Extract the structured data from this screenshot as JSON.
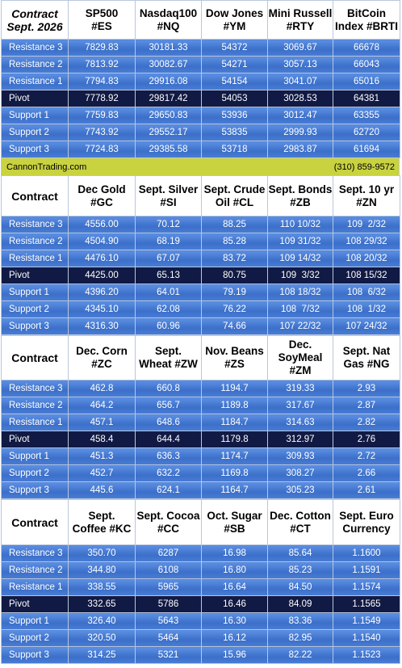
{
  "blocks": [
    {
      "header": [
        "Contract\nSept. 2026",
        "SP500\n#ES",
        "Nasdaq100\n#NQ",
        "Dow Jones\n#YM",
        "Mini Russell\n#RTY",
        "BitCoin\nIndex #BRTI"
      ],
      "rows": [
        [
          "Resistance 3",
          "7829.83",
          "30181.33",
          "54372",
          "3069.67",
          "66678"
        ],
        [
          "Resistance 2",
          "7813.92",
          "30082.67",
          "54271",
          "3057.13",
          "66043"
        ],
        [
          "Resistance 1",
          "7794.83",
          "29916.08",
          "54154",
          "3041.07",
          "65016"
        ],
        [
          "Pivot",
          "7778.92",
          "29817.42",
          "54053",
          "3028.53",
          "64381"
        ],
        [
          "Support 1",
          "7759.83",
          "29650.83",
          "53936",
          "3012.47",
          "63355"
        ],
        [
          "Support 2",
          "7743.92",
          "29552.17",
          "53835",
          "2999.93",
          "62720"
        ],
        [
          "Support 3",
          "7724.83",
          "29385.58",
          "53718",
          "2983.87",
          "61694"
        ]
      ]
    },
    {
      "header": [
        "Contract",
        "Dec Gold\n#GC",
        "Sept. Silver\n#SI",
        "Sept. Crude\nOil #CL",
        "Sept. Bonds\n#ZB",
        "Sept. 10 yr\n#ZN"
      ],
      "rows": [
        [
          "Resistance 3",
          "4556.00",
          "70.12",
          "88.25",
          "110 10/32",
          "109  2/32"
        ],
        [
          "Resistance 2",
          "4504.90",
          "68.19",
          "85.28",
          "109 31/32",
          "108 29/32"
        ],
        [
          "Resistance 1",
          "4476.10",
          "67.07",
          "83.72",
          "109 14/32",
          "108 20/32"
        ],
        [
          "Pivot",
          "4425.00",
          "65.13",
          "80.75",
          "109  3/32",
          "108 15/32"
        ],
        [
          "Support 1",
          "4396.20",
          "64.01",
          "79.19",
          "108 18/32",
          "108  6/32"
        ],
        [
          "Support 2",
          "4345.10",
          "62.08",
          "76.22",
          "108  7/32",
          "108  1/32"
        ],
        [
          "Support 3",
          "4316.30",
          "60.96",
          "74.66",
          "107 22/32",
          "107 24/32"
        ]
      ]
    },
    {
      "header": [
        "Contract",
        "Dec. Corn\n#ZC",
        "Sept.\nWheat #ZW",
        "Nov. Beans\n#ZS",
        "Dec.\nSoyMeal\n#ZM",
        "Sept. Nat\nGas #NG"
      ],
      "rows": [
        [
          "Resistance 3",
          "462.8",
          "660.8",
          "1194.7",
          "319.33",
          "2.93"
        ],
        [
          "Resistance 2",
          "464.2",
          "656.7",
          "1189.8",
          "317.67",
          "2.87"
        ],
        [
          "Resistance 1",
          "457.1",
          "648.6",
          "1184.7",
          "314.63",
          "2.82"
        ],
        [
          "Pivot",
          "458.4",
          "644.4",
          "1179.8",
          "312.97",
          "2.76"
        ],
        [
          "Support 1",
          "451.3",
          "636.3",
          "1174.7",
          "309.93",
          "2.72"
        ],
        [
          "Support 2",
          "452.7",
          "632.2",
          "1169.8",
          "308.27",
          "2.66"
        ],
        [
          "Support 3",
          "445.6",
          "624.1",
          "1164.7",
          "305.23",
          "2.61"
        ]
      ]
    },
    {
      "header": [
        "Contract",
        "Sept.\nCoffee #KC",
        "Sept. Cocoa\n#CC",
        "Oct. Sugar\n#SB",
        "Dec. Cotton\n#CT",
        "Sept. Euro\nCurrency"
      ],
      "rows": [
        [
          "Resistance 3",
          "350.70",
          "6287",
          "16.98",
          "85.64",
          "1.1600"
        ],
        [
          "Resistance 2",
          "344.80",
          "6108",
          "16.80",
          "85.23",
          "1.1591"
        ],
        [
          "Resistance 1",
          "338.55",
          "5965",
          "16.64",
          "84.50",
          "1.1574"
        ],
        [
          "Pivot",
          "332.65",
          "5786",
          "16.46",
          "84.09",
          "1.1565"
        ],
        [
          "Support 1",
          "326.40",
          "5643",
          "16.30",
          "83.36",
          "1.1549"
        ],
        [
          "Support 2",
          "320.50",
          "5464",
          "16.12",
          "82.95",
          "1.1540"
        ],
        [
          "Support 3",
          "314.25",
          "5321",
          "15.96",
          "82.22",
          "1.1523"
        ]
      ]
    }
  ],
  "banner": {
    "site": "CannonTrading.com",
    "phone": "(310) 859-9572"
  }
}
